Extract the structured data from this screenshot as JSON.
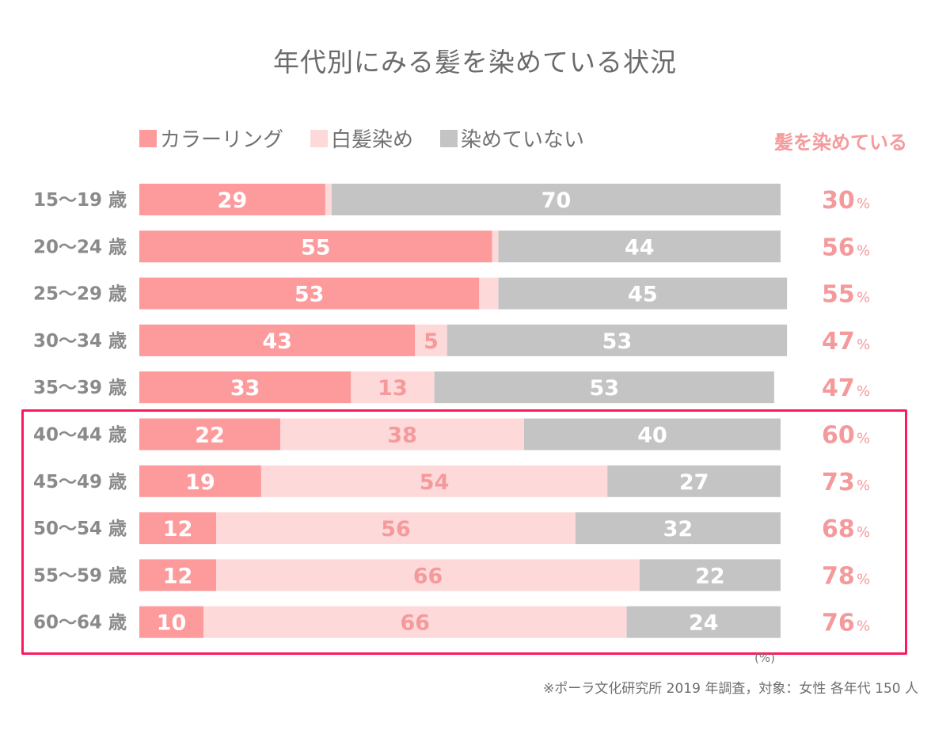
{
  "chart_data": {
    "type": "bar",
    "orientation": "horizontal",
    "stacked": true,
    "title": "年代別にみる髪を染めている状況",
    "xlabel": "",
    "ylabel": "",
    "unit_label": "(%)",
    "xlim": [
      0,
      100
    ],
    "grid": false,
    "legend_position": "top-left",
    "categories": [
      "15〜19 歳",
      "20〜24 歳",
      "25〜29 歳",
      "30〜34 歳",
      "35〜39 歳",
      "40〜44 歳",
      "45〜49 歳",
      "50〜54 歳",
      "55〜59 歳",
      "60〜64 歳"
    ],
    "series": [
      {
        "name": "カラーリング",
        "color": "#fc9a9c",
        "label_color": "#ffffff",
        "values": [
          29,
          55,
          53,
          43,
          33,
          22,
          19,
          12,
          12,
          10
        ]
      },
      {
        "name": "白髪染め",
        "color": "#fed9da",
        "label_color": "#f59a9c",
        "values": [
          1,
          1,
          3,
          5,
          13,
          38,
          54,
          56,
          66,
          66
        ]
      },
      {
        "name": "染めていない",
        "color": "#c4c4c4",
        "label_color": "#ffffff",
        "values": [
          70,
          44,
          45,
          53,
          53,
          40,
          27,
          32,
          22,
          24
        ]
      }
    ],
    "totals_header": "髪を染めている",
    "totals": [
      30,
      56,
      55,
      47,
      47,
      60,
      73,
      68,
      78,
      76
    ],
    "totals_unit": "%",
    "highlighted_categories": [
      "40〜44 歳",
      "45〜49 歳",
      "50〜54 歳",
      "55〜59 歳",
      "60〜64 歳"
    ],
    "footnote": "※ポーラ文化研究所 2019 年調査，対象：女性 各年代 150 人"
  },
  "colors": {
    "highlight_border": "#fb1a5e",
    "totals_text": "#f59a9c",
    "category_text": "#8a8a8a"
  }
}
